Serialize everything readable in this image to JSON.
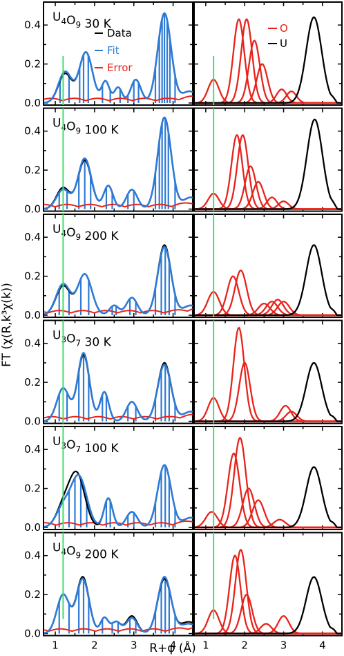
{
  "colors": {
    "data": "#000000",
    "fit": "#2E7BD6",
    "error": "#E8231B",
    "oshell": "#E8231B",
    "ushell": "#000000",
    "marker": "#3CE26A"
  },
  "chart_data": {
    "type": "line",
    "xlabel": "R+φ (Å)",
    "ylabel": "FT (χ(R,k³χ(k))",
    "ylim": [
      0,
      0.5
    ],
    "xlim_left": [
      0.7,
      4.5
    ],
    "xlim_right": [
      0.7,
      4.5
    ],
    "yticks": [
      "0.0",
      "0.2",
      "0.4"
    ],
    "xticks_left": [
      "1",
      "2",
      "3",
      "4"
    ],
    "xticks_right": [
      "1",
      "2",
      "3",
      "4"
    ],
    "marker_line_r": 1.2,
    "legend_left": [
      "Data",
      "Fit",
      "Error"
    ],
    "legend_right": [
      "O",
      "U"
    ],
    "panels": [
      {
        "label": {
          "a": "U",
          "na": "4",
          "b": "O",
          "nb": "9",
          "temp": "30 K"
        },
        "data_peaks": [
          [
            1.25,
            0.15,
            0.17
          ],
          [
            1.78,
            0.26,
            0.17
          ],
          [
            2.28,
            0.11,
            0.1
          ],
          [
            2.6,
            0.08,
            0.1
          ],
          [
            3.05,
            0.12,
            0.13
          ],
          [
            3.78,
            0.46,
            0.17
          ],
          [
            4.42,
            0.06,
            0.2
          ]
        ],
        "fit_peaks": [
          [
            1.25,
            0.16,
            0.17
          ],
          [
            1.78,
            0.26,
            0.17
          ],
          [
            2.28,
            0.11,
            0.1
          ],
          [
            2.6,
            0.08,
            0.1
          ],
          [
            3.05,
            0.12,
            0.13
          ],
          [
            3.78,
            0.46,
            0.17
          ],
          [
            4.42,
            0.06,
            0.2
          ]
        ],
        "sticks": [
          1.12,
          1.35,
          1.62,
          1.72,
          1.84,
          2.2,
          2.4,
          2.65,
          2.85,
          3.0,
          3.12,
          3.55,
          3.65,
          3.72,
          3.78,
          3.85,
          3.92,
          4.05
        ],
        "oshells": [
          [
            1.2,
            0.12,
            0.14
          ],
          [
            1.85,
            0.43,
            0.14
          ],
          [
            2.05,
            0.43,
            0.14
          ],
          [
            2.25,
            0.32,
            0.14
          ],
          [
            2.45,
            0.2,
            0.14
          ],
          [
            2.95,
            0.07,
            0.13
          ],
          [
            3.2,
            0.06,
            0.13
          ]
        ],
        "ushell": [
          3.78,
          0.44,
          0.2
        ]
      },
      {
        "label": {
          "a": "U",
          "na": "4",
          "b": "O",
          "nb": "9",
          "temp": "100 K"
        },
        "data_peaks": [
          [
            1.2,
            0.11,
            0.17
          ],
          [
            1.75,
            0.25,
            0.17
          ],
          [
            2.35,
            0.12,
            0.12
          ],
          [
            2.95,
            0.1,
            0.14
          ],
          [
            3.78,
            0.47,
            0.17
          ],
          [
            4.45,
            0.06,
            0.2
          ]
        ],
        "fit_peaks": [
          [
            1.2,
            0.1,
            0.17
          ],
          [
            1.75,
            0.26,
            0.17
          ],
          [
            2.35,
            0.12,
            0.12
          ],
          [
            2.95,
            0.1,
            0.14
          ],
          [
            3.78,
            0.47,
            0.17
          ],
          [
            4.45,
            0.06,
            0.2
          ]
        ],
        "sticks": [
          1.1,
          1.3,
          1.6,
          1.75,
          1.9,
          2.3,
          2.45,
          2.85,
          3.0,
          3.55,
          3.65,
          3.72,
          3.8,
          3.88,
          4.05
        ],
        "oshells": [
          [
            1.2,
            0.08,
            0.14
          ],
          [
            1.8,
            0.38,
            0.14
          ],
          [
            1.95,
            0.38,
            0.14
          ],
          [
            2.15,
            0.22,
            0.14
          ],
          [
            2.35,
            0.14,
            0.14
          ],
          [
            2.7,
            0.06,
            0.13
          ],
          [
            3.0,
            0.04,
            0.13
          ]
        ],
        "ushell": [
          3.8,
          0.46,
          0.2
        ]
      },
      {
        "label": {
          "a": "U",
          "na": "4",
          "b": "O",
          "nb": "9",
          "temp": "200 K"
        },
        "data_peaks": [
          [
            1.2,
            0.15,
            0.18
          ],
          [
            1.75,
            0.21,
            0.18
          ],
          [
            2.5,
            0.05,
            0.12
          ],
          [
            2.95,
            0.09,
            0.14
          ],
          [
            3.78,
            0.36,
            0.17
          ],
          [
            4.45,
            0.05,
            0.2
          ]
        ],
        "fit_peaks": [
          [
            1.2,
            0.16,
            0.18
          ],
          [
            1.75,
            0.21,
            0.18
          ],
          [
            2.5,
            0.05,
            0.12
          ],
          [
            2.95,
            0.09,
            0.14
          ],
          [
            3.78,
            0.35,
            0.17
          ],
          [
            4.45,
            0.05,
            0.2
          ]
        ],
        "sticks": [
          1.1,
          1.35,
          1.65,
          1.85,
          2.45,
          2.55,
          2.9,
          3.05,
          3.55,
          3.7,
          3.8,
          3.9,
          4.05
        ],
        "oshells": [
          [
            1.2,
            0.12,
            0.15
          ],
          [
            1.7,
            0.2,
            0.15
          ],
          [
            1.9,
            0.23,
            0.15
          ],
          [
            2.5,
            0.06,
            0.15
          ],
          [
            2.7,
            0.07,
            0.15
          ],
          [
            2.85,
            0.08,
            0.15
          ],
          [
            3.0,
            0.07,
            0.15
          ]
        ],
        "ushell": [
          3.78,
          0.36,
          0.2
        ]
      },
      {
        "label": {
          "a": "U",
          "na": "3",
          "b": "O",
          "nb": "7",
          "temp": "30 K"
        },
        "data_peaks": [
          [
            1.2,
            0.17,
            0.16
          ],
          [
            1.72,
            0.34,
            0.15
          ],
          [
            2.25,
            0.15,
            0.11
          ],
          [
            2.95,
            0.1,
            0.14
          ],
          [
            3.78,
            0.3,
            0.17
          ],
          [
            4.45,
            0.05,
            0.2
          ]
        ],
        "fit_peaks": [
          [
            1.2,
            0.17,
            0.16
          ],
          [
            1.72,
            0.35,
            0.15
          ],
          [
            2.25,
            0.15,
            0.11
          ],
          [
            2.95,
            0.1,
            0.14
          ],
          [
            3.78,
            0.29,
            0.17
          ],
          [
            4.45,
            0.05,
            0.2
          ]
        ],
        "sticks": [
          1.1,
          1.3,
          1.6,
          1.72,
          1.85,
          2.2,
          2.3,
          2.85,
          3.05,
          3.55,
          3.7,
          3.8,
          3.9,
          4.05
        ],
        "oshells": [
          [
            1.2,
            0.12,
            0.14
          ],
          [
            1.85,
            0.48,
            0.14
          ],
          [
            2.0,
            0.3,
            0.14
          ],
          [
            3.05,
            0.08,
            0.14
          ],
          [
            3.2,
            0.05,
            0.14
          ]
        ],
        "ushell": [
          3.78,
          0.3,
          0.2
        ]
      },
      {
        "label": {
          "a": "U",
          "na": "3",
          "b": "O",
          "nb": "7",
          "temp": "100 K"
        },
        "data_peaks": [
          [
            1.2,
            0.1,
            0.18
          ],
          [
            1.55,
            0.27,
            0.2
          ],
          [
            2.35,
            0.15,
            0.11
          ],
          [
            2.95,
            0.08,
            0.14
          ],
          [
            3.78,
            0.32,
            0.17
          ],
          [
            4.45,
            0.05,
            0.2
          ]
        ],
        "fit_peaks": [
          [
            1.2,
            0.1,
            0.18
          ],
          [
            1.6,
            0.26,
            0.2
          ],
          [
            2.35,
            0.15,
            0.11
          ],
          [
            2.95,
            0.08,
            0.14
          ],
          [
            3.78,
            0.32,
            0.17
          ],
          [
            4.45,
            0.05,
            0.2
          ]
        ],
        "sticks": [
          1.1,
          1.35,
          1.5,
          1.65,
          1.8,
          2.3,
          2.4,
          2.85,
          3.0,
          3.55,
          3.7,
          3.8,
          3.9,
          4.05
        ],
        "oshells": [
          [
            1.15,
            0.08,
            0.15
          ],
          [
            1.72,
            0.38,
            0.15
          ],
          [
            1.88,
            0.46,
            0.15
          ],
          [
            2.1,
            0.2,
            0.15
          ],
          [
            2.35,
            0.14,
            0.15
          ],
          [
            2.9,
            0.04,
            0.15
          ]
        ],
        "ushell": [
          3.78,
          0.31,
          0.2
        ]
      },
      {
        "label": {
          "a": "U",
          "na": "4",
          "b": "O",
          "nb": "9",
          "temp": "200 K"
        },
        "data_peaks": [
          [
            1.2,
            0.2,
            0.16
          ],
          [
            1.7,
            0.29,
            0.16
          ],
          [
            2.25,
            0.08,
            0.1
          ],
          [
            2.55,
            0.06,
            0.12
          ],
          [
            2.95,
            0.09,
            0.14
          ],
          [
            3.78,
            0.28,
            0.17
          ],
          [
            4.4,
            0.06,
            0.22
          ]
        ],
        "fit_peaks": [
          [
            1.2,
            0.2,
            0.16
          ],
          [
            1.7,
            0.28,
            0.16
          ],
          [
            2.25,
            0.08,
            0.1
          ],
          [
            2.55,
            0.06,
            0.12
          ],
          [
            2.95,
            0.08,
            0.14
          ],
          [
            3.78,
            0.29,
            0.17
          ],
          [
            4.4,
            0.05,
            0.22
          ]
        ],
        "sticks": [
          1.1,
          1.35,
          1.6,
          1.72,
          1.85,
          2.2,
          2.45,
          2.6,
          2.9,
          3.05,
          3.55,
          3.7,
          3.8,
          3.9,
          4.05
        ],
        "oshells": [
          [
            1.2,
            0.12,
            0.14
          ],
          [
            1.75,
            0.4,
            0.14
          ],
          [
            1.9,
            0.43,
            0.14
          ],
          [
            2.05,
            0.2,
            0.14
          ],
          [
            2.55,
            0.05,
            0.14
          ],
          [
            3.0,
            0.09,
            0.14
          ]
        ],
        "ushell": [
          3.78,
          0.29,
          0.2
        ]
      }
    ]
  }
}
